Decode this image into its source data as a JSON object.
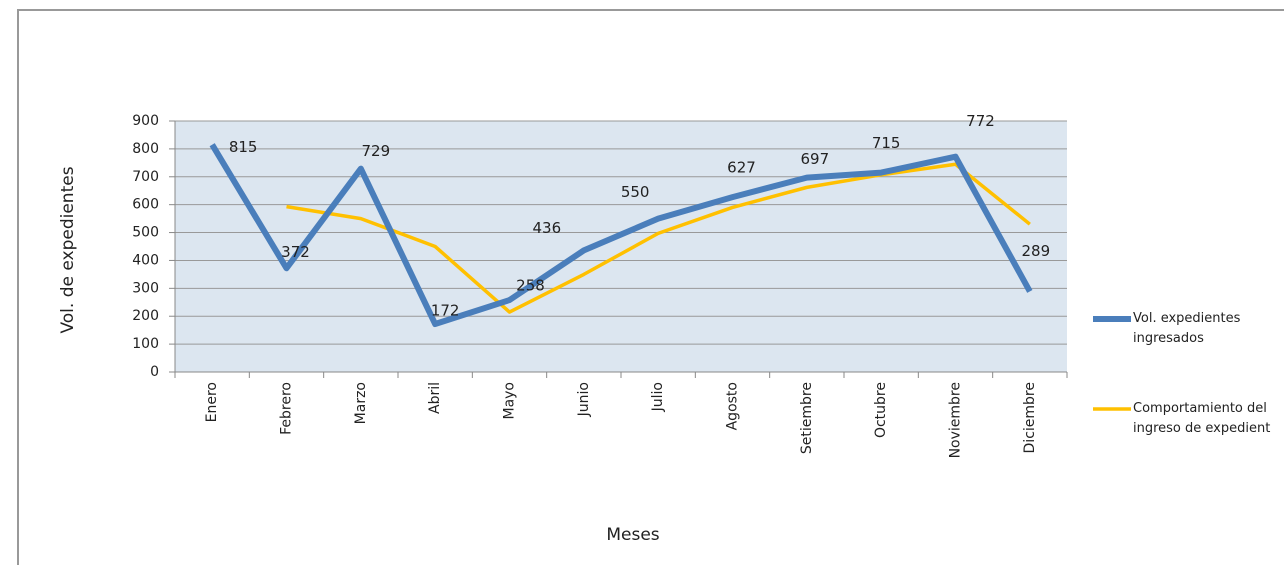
{
  "chart_data": {
    "type": "line",
    "x_label": "Meses",
    "y_label": "Vol. de expedientes",
    "categories": [
      "Enero",
      "Febrero",
      "Marzo",
      "Abril",
      "Mayo",
      "Junio",
      "Julio",
      "Agosto",
      "Setiembre",
      "Octubre",
      "Noviembre",
      "Diciembre"
    ],
    "series": [
      {
        "name": "Vol. expedientes ingresados",
        "color": "#4a7ebb",
        "values": [
          815,
          372,
          729,
          172,
          258,
          436,
          550,
          627,
          697,
          715,
          772,
          289
        ],
        "show_labels": true
      },
      {
        "name": "Comportamiento del ingreso de expedient",
        "color": "#ffc000",
        "values": [
          null,
          593,
          550,
          450,
          215,
          350,
          497,
          590,
          662,
          707,
          745,
          530
        ],
        "show_labels": false
      }
    ],
    "ylim": [
      0,
      900
    ],
    "yticks": [
      0,
      100,
      200,
      300,
      400,
      500,
      600,
      700,
      800,
      900
    ],
    "grid": true,
    "legend": "right"
  }
}
